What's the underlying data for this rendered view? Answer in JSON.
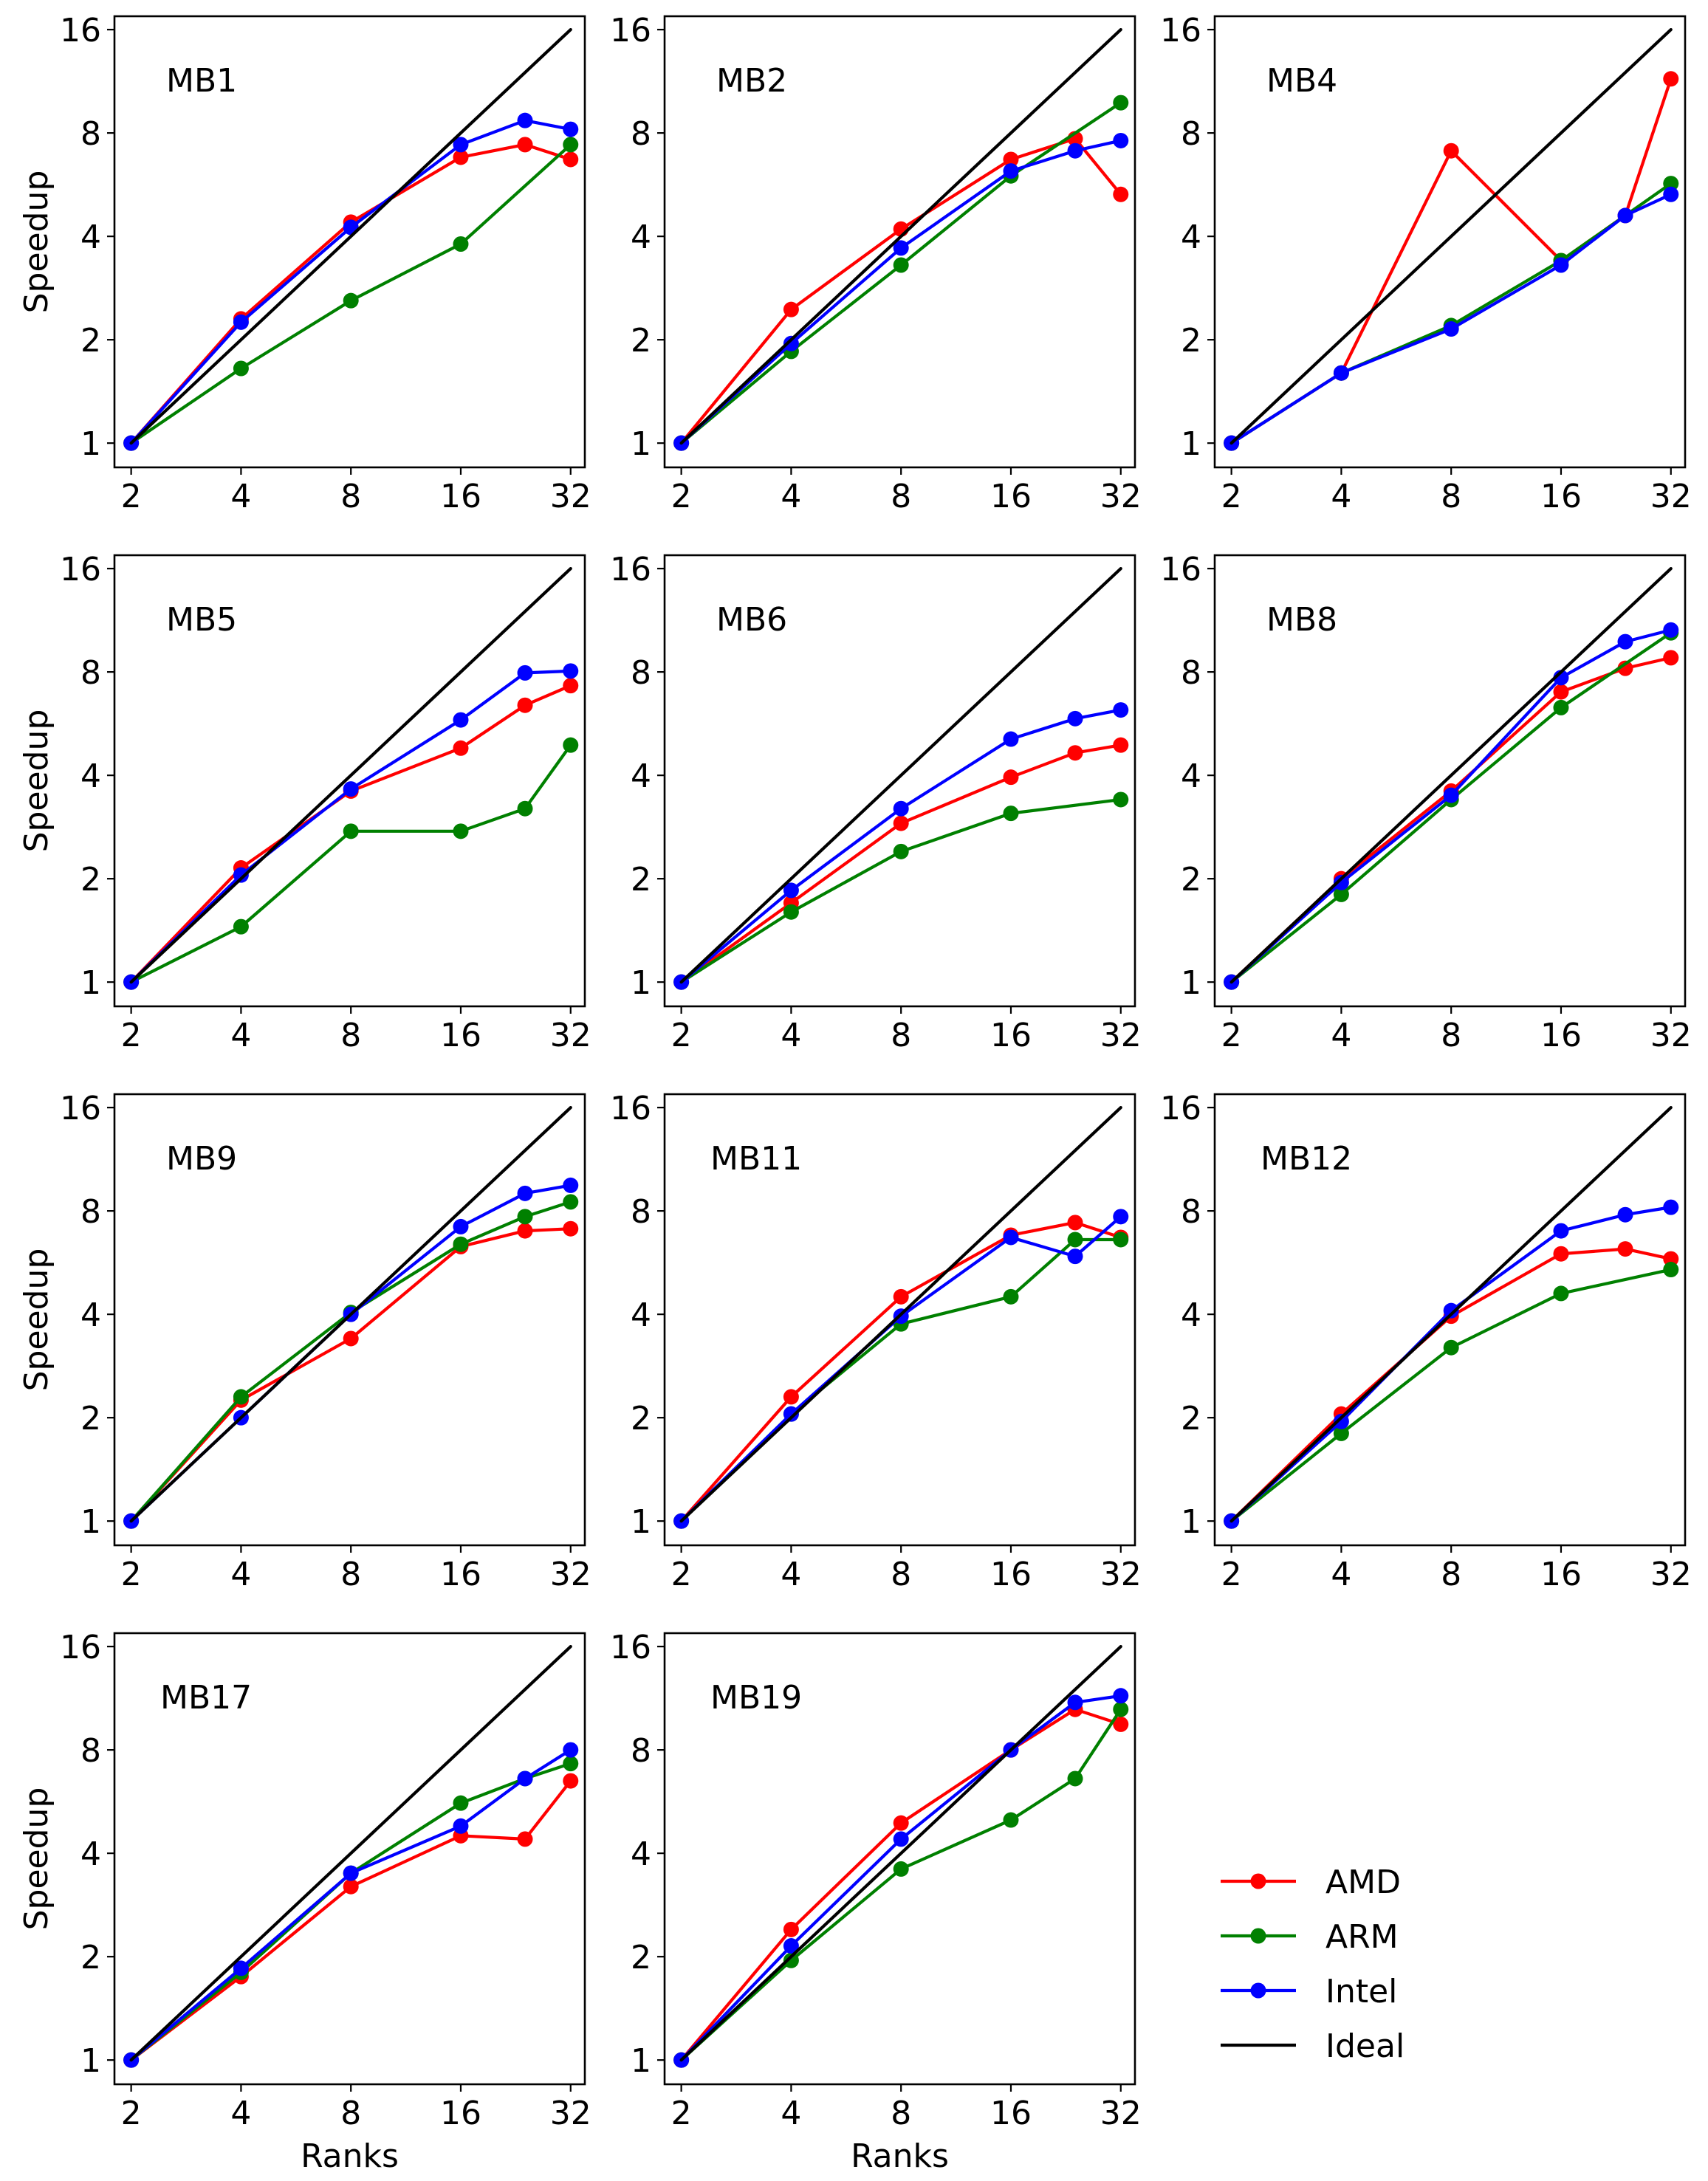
{
  "figure": {
    "xlabel": "Ranks",
    "ylabel": "Speedup",
    "x_ticks": [
      2,
      4,
      8,
      16,
      32
    ],
    "x_tick_labels": [
      "2",
      "4",
      "8",
      "16",
      "32"
    ],
    "y_ticks": [
      1,
      2,
      4,
      8,
      16
    ],
    "y_tick_labels": [
      "1",
      "2",
      "4",
      "8",
      "16"
    ],
    "legend": [
      {
        "name": "AMD",
        "color": "#ff0000",
        "marker": true
      },
      {
        "name": "ARM",
        "color": "#008000",
        "marker": true
      },
      {
        "name": "Intel",
        "color": "#0000ff",
        "marker": true
      },
      {
        "name": "Ideal",
        "color": "#000000",
        "marker": false
      }
    ]
  },
  "chart_data": [
    {
      "type": "line",
      "title": "MB1",
      "xscale": "log2",
      "yscale": "log2",
      "x": [
        2,
        4,
        8,
        16,
        24,
        32
      ],
      "xlim": [
        1.8,
        35
      ],
      "ylim": [
        0.85,
        17.5
      ],
      "series": [
        {
          "name": "AMD",
          "values": [
            1,
            2.3,
            4.4,
            6.8,
            7.4,
            6.7
          ]
        },
        {
          "name": "ARM",
          "values": [
            1,
            1.65,
            2.6,
            3.8,
            null,
            7.4
          ]
        },
        {
          "name": "Intel",
          "values": [
            1,
            2.25,
            4.25,
            7.4,
            8.7,
            8.2
          ]
        },
        {
          "name": "Ideal",
          "x": [
            2,
            32
          ],
          "values": [
            1,
            16
          ]
        }
      ]
    },
    {
      "type": "line",
      "title": "MB2",
      "xscale": "log2",
      "yscale": "log2",
      "x": [
        2,
        4,
        8,
        16,
        24,
        32
      ],
      "xlim": [
        1.8,
        35
      ],
      "ylim": [
        0.85,
        17.5
      ],
      "series": [
        {
          "name": "AMD",
          "values": [
            1,
            2.45,
            4.2,
            6.7,
            7.7,
            5.3
          ]
        },
        {
          "name": "ARM",
          "values": [
            1,
            1.85,
            3.3,
            6.0,
            null,
            9.8
          ]
        },
        {
          "name": "Intel",
          "values": [
            1,
            1.95,
            3.7,
            6.2,
            7.1,
            7.6
          ]
        },
        {
          "name": "Ideal",
          "x": [
            2,
            32
          ],
          "values": [
            1,
            16
          ]
        }
      ]
    },
    {
      "type": "line",
      "title": "MB4",
      "xscale": "log2",
      "yscale": "log2",
      "x": [
        2,
        4,
        8,
        16,
        24,
        32
      ],
      "xlim": [
        1.8,
        35
      ],
      "ylim": [
        0.85,
        17.5
      ],
      "series": [
        {
          "name": "AMD",
          "values": [
            1,
            1.6,
            7.1,
            3.4,
            4.6,
            11.5
          ]
        },
        {
          "name": "ARM",
          "values": [
            1,
            1.6,
            2.2,
            3.4,
            null,
            5.7
          ]
        },
        {
          "name": "Intel",
          "values": [
            1,
            1.6,
            2.15,
            3.3,
            4.6,
            5.3
          ]
        },
        {
          "name": "Ideal",
          "x": [
            2,
            32
          ],
          "values": [
            1,
            16
          ]
        }
      ]
    },
    {
      "type": "line",
      "title": "MB5",
      "xscale": "log2",
      "yscale": "log2",
      "x": [
        2,
        4,
        8,
        16,
        24,
        32
      ],
      "xlim": [
        1.8,
        35
      ],
      "ylim": [
        0.85,
        17.5
      ],
      "series": [
        {
          "name": "AMD",
          "values": [
            1,
            2.15,
            3.6,
            4.8,
            6.4,
            7.3
          ]
        },
        {
          "name": "ARM",
          "values": [
            1,
            1.45,
            2.75,
            2.75,
            3.2,
            4.9
          ]
        },
        {
          "name": "Intel",
          "values": [
            1,
            2.05,
            3.65,
            5.8,
            7.95,
            8.05
          ]
        },
        {
          "name": "Ideal",
          "x": [
            2,
            32
          ],
          "values": [
            1,
            16
          ]
        }
      ]
    },
    {
      "type": "line",
      "title": "MB6",
      "xscale": "log2",
      "yscale": "log2",
      "x": [
        2,
        4,
        8,
        16,
        24,
        32
      ],
      "xlim": [
        1.8,
        35
      ],
      "ylim": [
        0.85,
        17.5
      ],
      "series": [
        {
          "name": "AMD",
          "values": [
            1,
            1.7,
            2.9,
            3.95,
            4.65,
            4.9
          ]
        },
        {
          "name": "ARM",
          "values": [
            1,
            1.6,
            2.4,
            3.1,
            null,
            3.4
          ]
        },
        {
          "name": "Intel",
          "values": [
            1,
            1.85,
            3.2,
            5.1,
            5.85,
            6.2
          ]
        },
        {
          "name": "Ideal",
          "x": [
            2,
            32
          ],
          "values": [
            1,
            16
          ]
        }
      ]
    },
    {
      "type": "line",
      "title": "MB8",
      "xscale": "log2",
      "yscale": "log2",
      "x": [
        2,
        4,
        8,
        16,
        24,
        32
      ],
      "xlim": [
        1.8,
        35
      ],
      "ylim": [
        0.85,
        17.5
      ],
      "series": [
        {
          "name": "AMD",
          "values": [
            1,
            2.0,
            3.6,
            7.0,
            8.2,
            8.8
          ]
        },
        {
          "name": "ARM",
          "values": [
            1,
            1.8,
            3.4,
            6.3,
            null,
            10.4
          ]
        },
        {
          "name": "Intel",
          "values": [
            1,
            1.95,
            3.5,
            7.7,
            9.8,
            10.6
          ]
        },
        {
          "name": "Ideal",
          "x": [
            2,
            32
          ],
          "values": [
            1,
            16
          ]
        }
      ]
    },
    {
      "type": "line",
      "title": "MB9",
      "xscale": "log2",
      "yscale": "log2",
      "x": [
        2,
        4,
        8,
        16,
        24,
        32
      ],
      "xlim": [
        1.8,
        35
      ],
      "ylim": [
        0.85,
        17.5
      ],
      "series": [
        {
          "name": "AMD",
          "values": [
            1,
            2.25,
            3.4,
            6.3,
            7.0,
            7.1
          ]
        },
        {
          "name": "ARM",
          "values": [
            1,
            2.3,
            4.05,
            6.4,
            7.7,
            8.5
          ]
        },
        {
          "name": "Intel",
          "values": [
            1,
            2.0,
            4.0,
            7.2,
            9.0,
            9.5
          ]
        },
        {
          "name": "Ideal",
          "x": [
            2,
            32
          ],
          "values": [
            1,
            16
          ]
        }
      ]
    },
    {
      "type": "line",
      "title": "MB11",
      "xscale": "log2",
      "yscale": "log2",
      "x": [
        2,
        4,
        8,
        16,
        24,
        32
      ],
      "xlim": [
        1.8,
        35
      ],
      "ylim": [
        0.85,
        17.5
      ],
      "series": [
        {
          "name": "AMD",
          "values": [
            1,
            2.3,
            4.5,
            6.8,
            7.4,
            6.7
          ]
        },
        {
          "name": "ARM",
          "values": [
            1,
            2.05,
            3.75,
            4.5,
            6.6,
            6.6
          ]
        },
        {
          "name": "Intel",
          "values": [
            1,
            2.05,
            3.95,
            6.7,
            5.9,
            7.7
          ]
        },
        {
          "name": "Ideal",
          "x": [
            2,
            32
          ],
          "values": [
            1,
            16
          ]
        }
      ]
    },
    {
      "type": "line",
      "title": "MB12",
      "xscale": "log2",
      "yscale": "log2",
      "x": [
        2,
        4,
        8,
        16,
        24,
        32
      ],
      "xlim": [
        1.8,
        35
      ],
      "ylim": [
        0.85,
        17.5
      ],
      "series": [
        {
          "name": "AMD",
          "values": [
            1,
            2.05,
            3.95,
            6.0,
            6.2,
            5.8
          ]
        },
        {
          "name": "ARM",
          "values": [
            1,
            1.8,
            3.2,
            4.6,
            null,
            5.4
          ]
        },
        {
          "name": "Intel",
          "values": [
            1,
            1.95,
            4.1,
            7.0,
            7.8,
            8.2
          ]
        },
        {
          "name": "Ideal",
          "x": [
            2,
            32
          ],
          "values": [
            1,
            16
          ]
        }
      ]
    },
    {
      "type": "line",
      "title": "MB17",
      "xscale": "log2",
      "yscale": "log2",
      "x": [
        2,
        4,
        8,
        16,
        24,
        32
      ],
      "xlim": [
        1.8,
        35
      ],
      "ylim": [
        0.85,
        17.5
      ],
      "series": [
        {
          "name": "AMD",
          "values": [
            1,
            1.75,
            3.2,
            4.5,
            4.4,
            6.5
          ]
        },
        {
          "name": "ARM",
          "values": [
            1,
            1.8,
            3.5,
            5.6,
            6.6,
            7.3
          ]
        },
        {
          "name": "Intel",
          "values": [
            1,
            1.85,
            3.5,
            4.8,
            6.6,
            8.0
          ]
        },
        {
          "name": "Ideal",
          "x": [
            2,
            32
          ],
          "values": [
            1,
            16
          ]
        }
      ]
    },
    {
      "type": "line",
      "title": "MB19",
      "xscale": "log2",
      "yscale": "log2",
      "x": [
        2,
        4,
        8,
        16,
        24,
        32
      ],
      "xlim": [
        1.8,
        35
      ],
      "ylim": [
        0.85,
        17.5
      ],
      "series": [
        {
          "name": "AMD",
          "values": [
            1,
            2.4,
            4.9,
            8.0,
            10.5,
            9.5
          ]
        },
        {
          "name": "ARM",
          "values": [
            1,
            1.95,
            3.6,
            5.0,
            6.6,
            10.5
          ]
        },
        {
          "name": "Intel",
          "values": [
            1,
            2.15,
            4.4,
            8.0,
            11.0,
            11.5
          ]
        },
        {
          "name": "Ideal",
          "x": [
            2,
            32
          ],
          "values": [
            1,
            16
          ]
        }
      ]
    }
  ]
}
